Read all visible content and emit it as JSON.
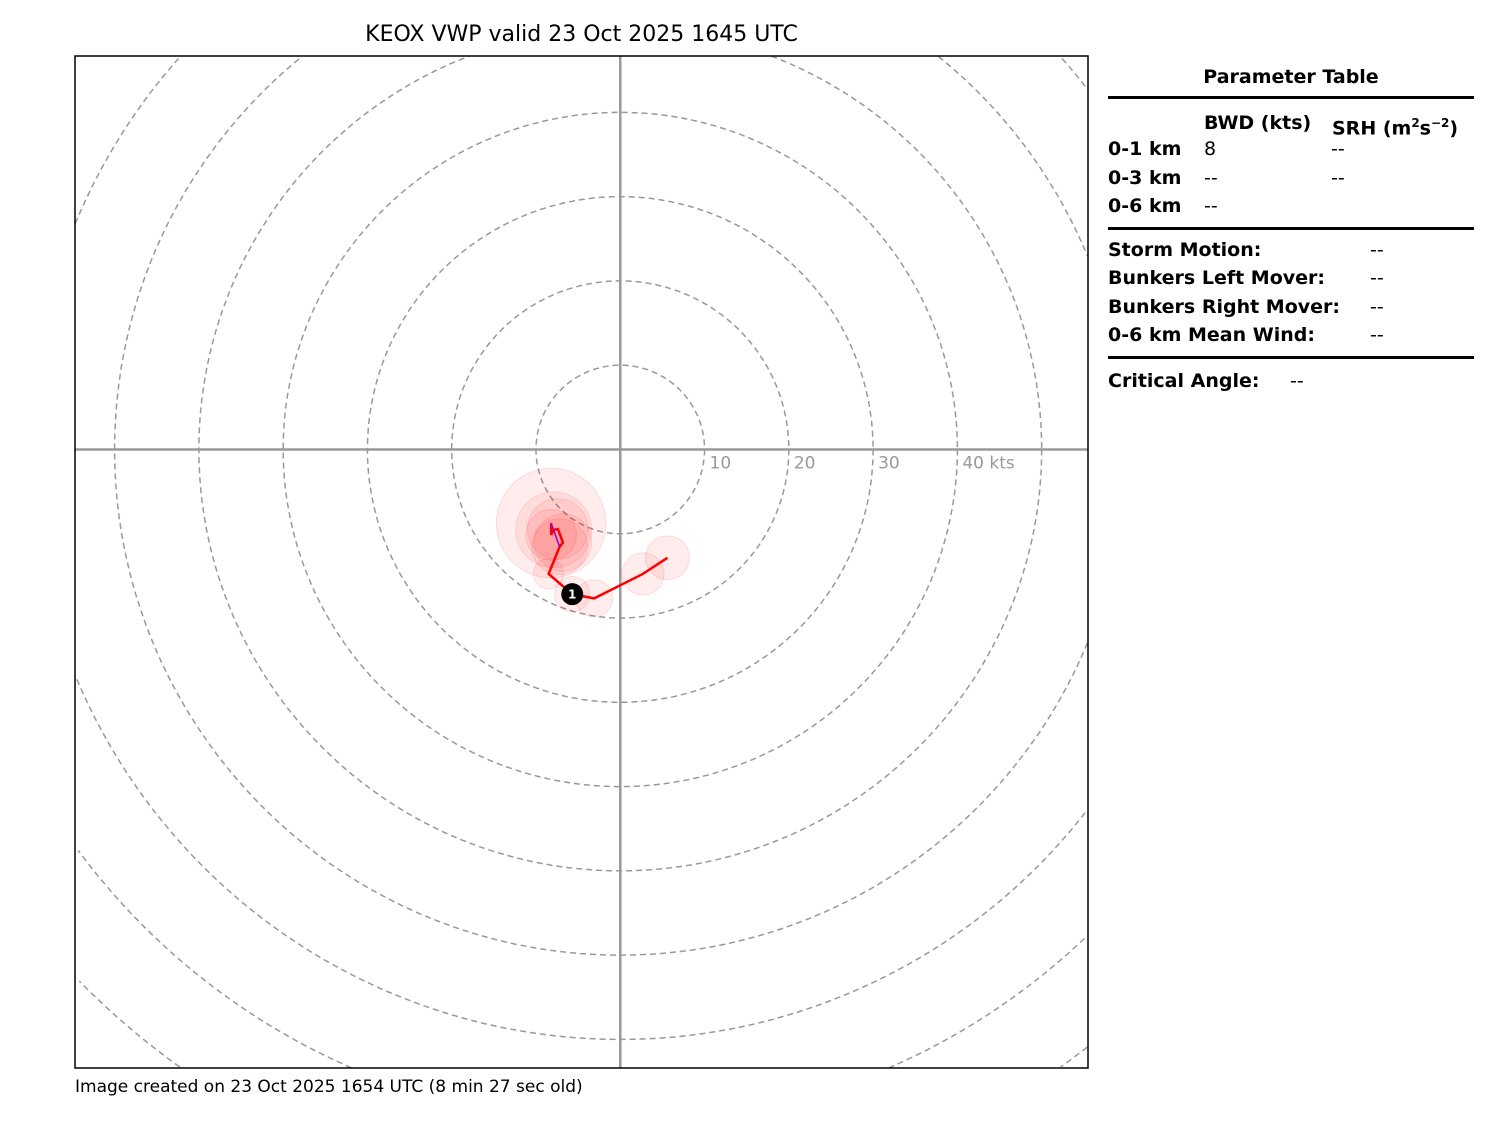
{
  "chart_data": {
    "type": "line",
    "title": "KEOX VWP valid 23 Oct 2025 1645 UTC",
    "subtype": "hodograph",
    "xlim": [
      -64.7,
      55.5
    ],
    "ylim": [
      -73.1,
      46.5
    ],
    "ring_interval_kts": 10,
    "ring_labels": [
      "10",
      "20",
      "30",
      "40 kts"
    ],
    "grid": true,
    "series": [
      {
        "color": "#ff0000",
        "points": [
          {
            "u": 5.6,
            "v": -12.8,
            "uncertainty": 2.6
          },
          {
            "u": 2.7,
            "v": -14.7,
            "uncertainty": 2.5
          },
          {
            "u": -3.1,
            "v": -17.6,
            "uncertainty": 2.2
          },
          {
            "u": -5.7,
            "v": -17.1,
            "uncertainty": 2.1
          },
          {
            "u": -8.5,
            "v": -14.7,
            "uncertainty": 1.8
          },
          {
            "u": -7.2,
            "v": -11.5,
            "uncertainty": 3.3
          },
          {
            "u": -6.8,
            "v": -11.0,
            "uncertainty": 3.4
          },
          {
            "u": -7.4,
            "v": -9.4,
            "uncertainty": 3.6
          },
          {
            "u": -7.9,
            "v": -9.5,
            "uncertainty": 4.5
          },
          {
            "u": -8.2,
            "v": -10.1,
            "uncertainty": 3.0
          },
          {
            "u": -8.2,
            "v": -8.7,
            "uncertainty": 6.5
          }
        ]
      },
      {
        "color": "#9900cc",
        "points": [
          {
            "u": -8.2,
            "v": -8.7
          },
          {
            "u": -7.2,
            "v": -11.5
          }
        ]
      }
    ],
    "markers": [
      {
        "label": "1",
        "u": -5.7,
        "v": -17.1
      }
    ]
  },
  "footer": "Image created on 23 Oct 2025 1654 UTC (8 min 27 sec old)",
  "table": {
    "title": "Parameter Table",
    "col1": "BWD (kts)",
    "col2_pre": "SRH (m",
    "col2_sup1": "2",
    "col2_mid": "s",
    "col2_sup2": "−2",
    "col2_post": ")",
    "rows": [
      {
        "label": "0-1 km",
        "bwd": "8",
        "srh": "--"
      },
      {
        "label": "0-3 km",
        "bwd": "--",
        "srh": "--"
      },
      {
        "label": "0-6 km",
        "bwd": "--"
      }
    ],
    "motion": [
      {
        "label": "Storm Motion:",
        "value": "--"
      },
      {
        "label": "Bunkers Left Mover:",
        "value": "--"
      },
      {
        "label": "Bunkers Right Mover:",
        "value": "--"
      },
      {
        "label": "0-6 km Mean Wind:",
        "value": "--"
      }
    ],
    "critical_label": "Critical Angle:",
    "critical_value": "--"
  }
}
